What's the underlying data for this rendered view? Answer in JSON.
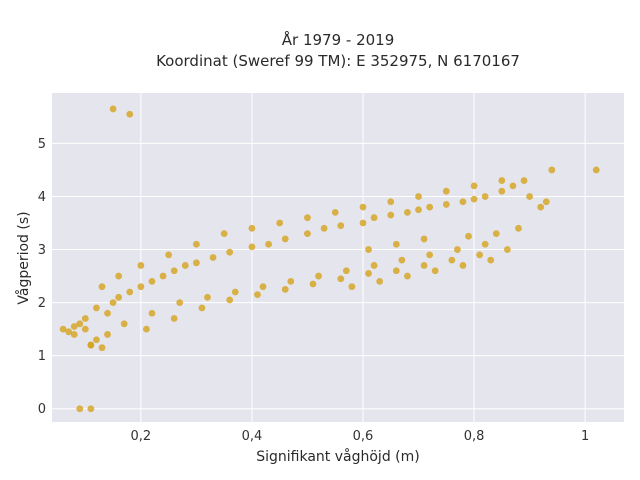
{
  "chart_data": {
    "type": "scatter",
    "title": [
      "År 1979 - 2019",
      "Koordinat (Sweref 99 TM): E 352975, N 6170167"
    ],
    "xlabel": "Signifikant våghöjd (m)",
    "ylabel": "Vågperiod (s)",
    "xlim": [
      0.04,
      1.07
    ],
    "ylim": [
      -0.25,
      5.95
    ],
    "xticks": [
      0.2,
      0.4,
      0.6,
      0.8,
      1.0
    ],
    "xtick_labels": [
      "0,2",
      "0,4",
      "0,6",
      "0,8",
      "1"
    ],
    "yticks": [
      0,
      1,
      2,
      3,
      4,
      5
    ],
    "ytick_labels": [
      "0",
      "1",
      "2",
      "3",
      "4",
      "5"
    ],
    "grid": true,
    "background": "#e5e5ee",
    "marker_color": "#d4a21b",
    "series": [
      {
        "x": [
          0.06,
          0.07,
          0.08,
          0.09,
          0.1,
          0.11,
          0.12,
          0.13,
          0.14,
          0.15,
          0.16,
          0.18,
          0.2,
          0.22,
          0.24,
          0.26,
          0.28,
          0.3,
          0.33,
          0.36,
          0.4,
          0.43,
          0.46,
          0.5,
          0.53,
          0.56,
          0.6,
          0.62,
          0.65,
          0.68,
          0.7,
          0.72,
          0.75,
          0.78,
          0.8,
          0.82,
          0.85,
          0.87,
          0.89,
          0.9,
          0.92,
          0.93,
          0.94,
          1.02,
          0.15,
          0.18,
          0.09,
          0.11,
          0.08,
          0.1,
          0.12,
          0.13,
          0.16,
          0.2,
          0.25,
          0.3,
          0.35,
          0.4,
          0.45,
          0.5,
          0.55,
          0.6,
          0.65,
          0.7,
          0.75,
          0.8,
          0.85,
          0.11,
          0.14,
          0.17,
          0.22,
          0.27,
          0.32,
          0.37,
          0.42,
          0.47,
          0.52,
          0.57,
          0.62,
          0.67,
          0.72,
          0.77,
          0.82,
          0.21,
          0.26,
          0.31,
          0.36,
          0.41,
          0.46,
          0.51,
          0.56,
          0.61,
          0.66,
          0.71,
          0.76,
          0.81,
          0.86,
          0.58,
          0.63,
          0.68,
          0.73,
          0.78,
          0.83,
          0.88,
          0.61,
          0.66,
          0.71,
          0.79,
          0.84
        ],
        "y": [
          1.5,
          1.45,
          1.55,
          1.6,
          1.5,
          1.2,
          1.3,
          1.15,
          1.8,
          2.0,
          2.1,
          2.2,
          2.3,
          2.4,
          2.5,
          2.6,
          2.7,
          2.75,
          2.85,
          2.95,
          3.05,
          3.1,
          3.2,
          3.3,
          3.4,
          3.45,
          3.5,
          3.6,
          3.65,
          3.7,
          3.75,
          3.8,
          3.85,
          3.9,
          3.95,
          4.0,
          4.1,
          4.2,
          4.3,
          4.0,
          3.8,
          3.9,
          4.5,
          4.5,
          5.65,
          5.55,
          0.0,
          0.0,
          1.4,
          1.7,
          1.9,
          2.3,
          2.5,
          2.7,
          2.9,
          3.1,
          3.3,
          3.4,
          3.5,
          3.6,
          3.7,
          3.8,
          3.9,
          4.0,
          4.1,
          4.2,
          4.3,
          1.2,
          1.4,
          1.6,
          1.8,
          2.0,
          2.1,
          2.2,
          2.3,
          2.4,
          2.5,
          2.6,
          2.7,
          2.8,
          2.9,
          3.0,
          3.1,
          1.5,
          1.7,
          1.9,
          2.05,
          2.15,
          2.25,
          2.35,
          2.45,
          2.55,
          2.6,
          2.7,
          2.8,
          2.9,
          3.0,
          2.3,
          2.4,
          2.5,
          2.6,
          2.7,
          2.8,
          3.4,
          3.0,
          3.1,
          3.2,
          3.25,
          3.3
        ]
      }
    ]
  }
}
